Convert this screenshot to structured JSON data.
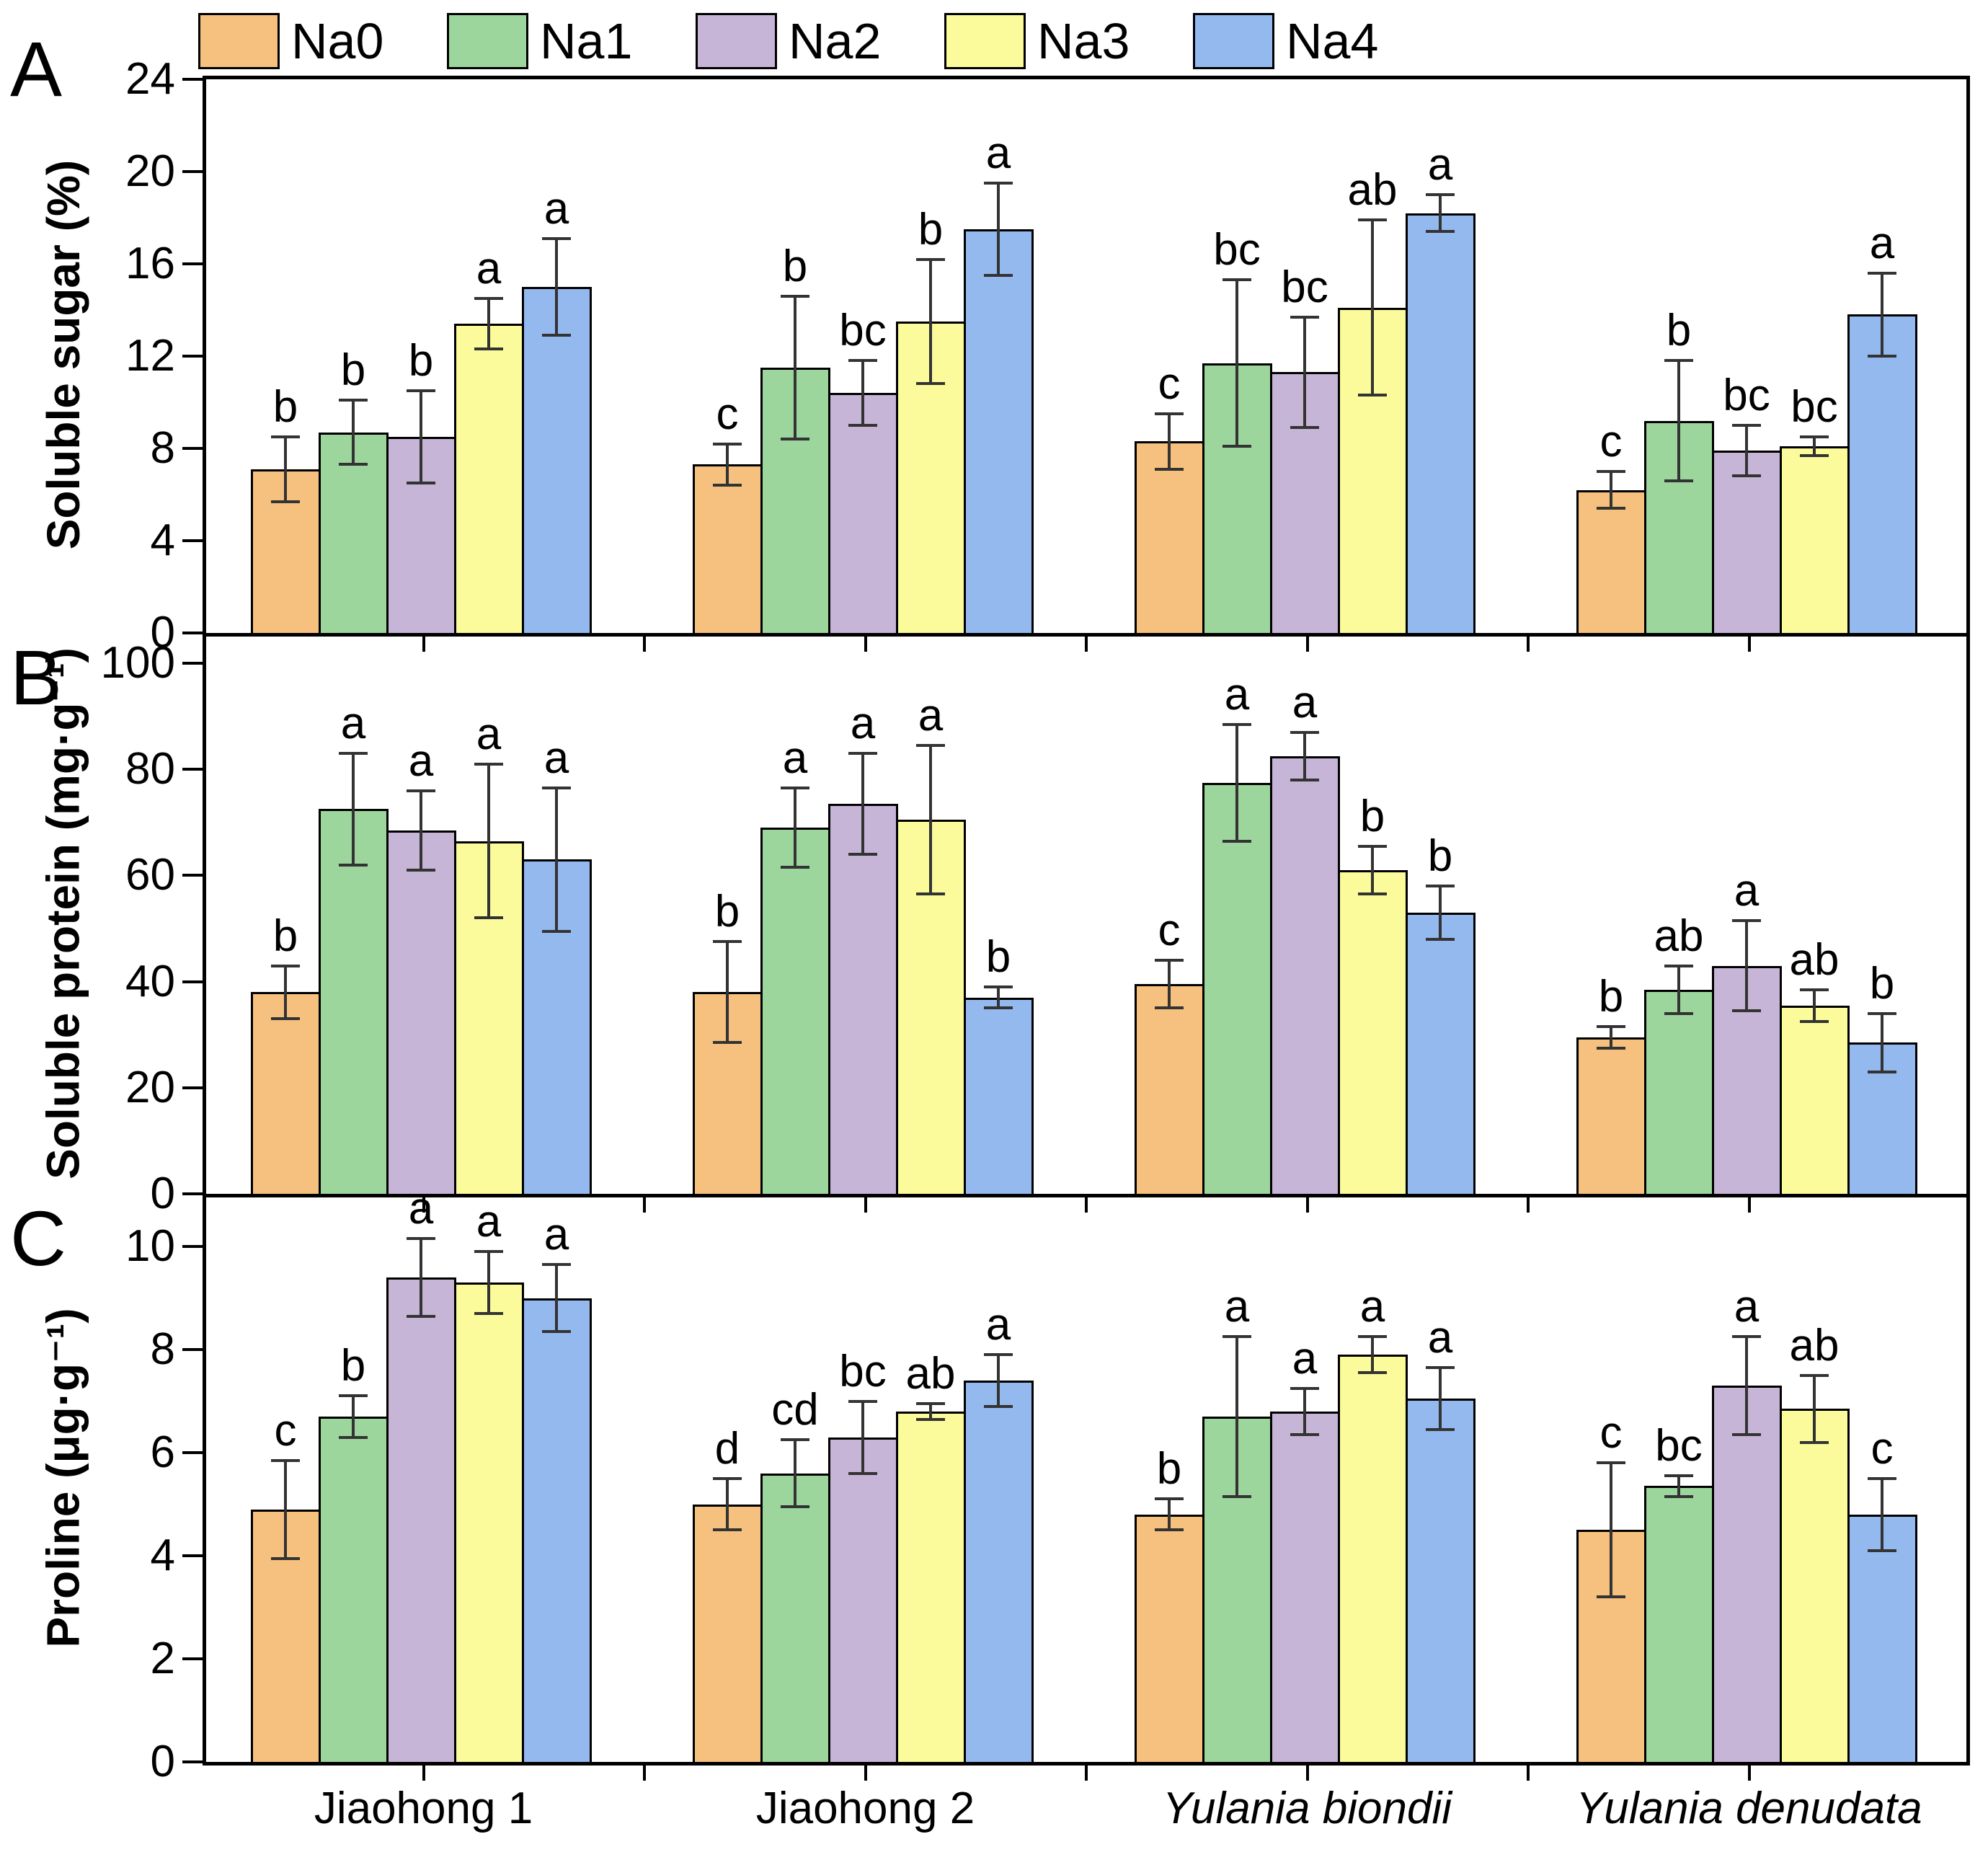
{
  "figure_type": "grouped-bar-chart-three-stacked-panels",
  "panel_labels": [
    "A",
    "B",
    "C"
  ],
  "legend": {
    "entries": [
      "Na0",
      "Na1",
      "Na2",
      "Na3",
      "Na4"
    ]
  },
  "colors": {
    "Na0": "#F6C17E",
    "Na1": "#9CD69C",
    "Na2": "#C7B5D8",
    "Na3": "#FBFB9B",
    "Na4": "#94B9EE",
    "bar_edge": "#000000",
    "error_bar": "#333333"
  },
  "categories": [
    "Jiaohong 1",
    "Jiaohong 2",
    "Yulania biondii",
    "Yulania denudata"
  ],
  "categories_italic": [
    false,
    false,
    true,
    true
  ],
  "chart_data": [
    {
      "panel": "A",
      "type": "bar",
      "ylabel": "Soluble sugar (%)",
      "ylim": [
        0,
        24
      ],
      "yticks": [
        0,
        4,
        8,
        12,
        16,
        20,
        24
      ],
      "grid": false,
      "legend_position": "top",
      "categories": [
        "Jiaohong 1",
        "Jiaohong 2",
        "Yulania biondii",
        "Yulania denudata"
      ],
      "series": [
        {
          "name": "Na0",
          "values": [
            7.1,
            7.3,
            8.3,
            6.2
          ],
          "errors": [
            1.4,
            0.9,
            1.2,
            0.8
          ],
          "letters": [
            "b",
            "c",
            "c",
            "c"
          ]
        },
        {
          "name": "Na1",
          "values": [
            8.7,
            11.5,
            11.7,
            9.2
          ],
          "errors": [
            1.4,
            3.1,
            3.6,
            2.6
          ],
          "letters": [
            "b",
            "b",
            "bc",
            "b"
          ]
        },
        {
          "name": "Na2",
          "values": [
            8.5,
            10.4,
            11.3,
            7.9
          ],
          "errors": [
            2.0,
            1.4,
            2.4,
            1.1
          ],
          "letters": [
            "b",
            "bc",
            "bc",
            "bc"
          ]
        },
        {
          "name": "Na3",
          "values": [
            13.4,
            13.5,
            14.1,
            8.1
          ],
          "errors": [
            1.1,
            2.7,
            3.8,
            0.4
          ],
          "letters": [
            "a",
            "b",
            "ab",
            "bc"
          ]
        },
        {
          "name": "Na4",
          "values": [
            15.0,
            17.5,
            18.2,
            13.8
          ],
          "errors": [
            2.1,
            2.0,
            0.8,
            1.8
          ],
          "letters": [
            "a",
            "a",
            "a",
            "a"
          ]
        }
      ]
    },
    {
      "panel": "B",
      "type": "bar",
      "ylabel": "Soluble protein (mg·g⁻¹)",
      "ylim": [
        0,
        100
      ],
      "yticks": [
        0,
        20,
        40,
        60,
        80,
        100
      ],
      "grid": false,
      "categories": [
        "Jiaohong 1",
        "Jiaohong 2",
        "Yulania biondii",
        "Yulania denudata"
      ],
      "series": [
        {
          "name": "Na0",
          "values": [
            38,
            38,
            39.5,
            29.5
          ],
          "errors": [
            5,
            9.5,
            4.5,
            2
          ],
          "letters": [
            "b",
            "b",
            "c",
            "b"
          ]
        },
        {
          "name": "Na1",
          "values": [
            72.5,
            69,
            77.5,
            38.5
          ],
          "errors": [
            10.5,
            7.5,
            11,
            4.5
          ],
          "letters": [
            "a",
            "a",
            "a",
            "ab"
          ]
        },
        {
          "name": "Na2",
          "values": [
            68.5,
            73.5,
            82.5,
            43
          ],
          "errors": [
            7.5,
            9.5,
            4.5,
            8.5
          ],
          "letters": [
            "a",
            "a",
            "a",
            "a"
          ]
        },
        {
          "name": "Na3",
          "values": [
            66.5,
            70.5,
            61,
            35.5
          ],
          "errors": [
            14.5,
            14,
            4.5,
            3
          ],
          "letters": [
            "a",
            "a",
            "b",
            "ab"
          ]
        },
        {
          "name": "Na4",
          "values": [
            63,
            37,
            53,
            28.5
          ],
          "errors": [
            13.5,
            2,
            5,
            5.5
          ],
          "letters": [
            "a",
            "b",
            "b",
            "b"
          ]
        }
      ]
    },
    {
      "panel": "C",
      "type": "bar",
      "ylabel": "Proline (μg·g⁻¹)",
      "ylim": [
        0,
        10
      ],
      "yticks": [
        0,
        2,
        4,
        6,
        8,
        10
      ],
      "grid": false,
      "categories": [
        "Jiaohong 1",
        "Jiaohong 2",
        "Yulania biondii",
        "Yulania denudata"
      ],
      "series": [
        {
          "name": "Na0",
          "values": [
            4.9,
            5.0,
            4.8,
            4.5
          ],
          "errors": [
            0.95,
            0.5,
            0.3,
            1.3
          ],
          "letters": [
            "c",
            "d",
            "b",
            "c"
          ]
        },
        {
          "name": "Na1",
          "values": [
            6.7,
            5.6,
            6.7,
            5.35
          ],
          "errors": [
            0.4,
            0.65,
            1.55,
            0.2
          ],
          "letters": [
            "b",
            "cd",
            "a",
            "bc"
          ]
        },
        {
          "name": "Na2",
          "values": [
            9.4,
            6.3,
            6.8,
            7.3
          ],
          "errors": [
            0.75,
            0.7,
            0.45,
            0.95
          ],
          "letters": [
            "a",
            "bc",
            "a",
            "a"
          ]
        },
        {
          "name": "Na3",
          "values": [
            9.3,
            6.8,
            7.9,
            6.85
          ],
          "errors": [
            0.6,
            0.15,
            0.35,
            0.65
          ],
          "letters": [
            "a",
            "ab",
            "a",
            "ab"
          ]
        },
        {
          "name": "Na4",
          "values": [
            9.0,
            7.4,
            7.05,
            4.8
          ],
          "errors": [
            0.65,
            0.5,
            0.6,
            0.7
          ],
          "letters": [
            "a",
            "a",
            "a",
            "c"
          ]
        }
      ]
    }
  ]
}
